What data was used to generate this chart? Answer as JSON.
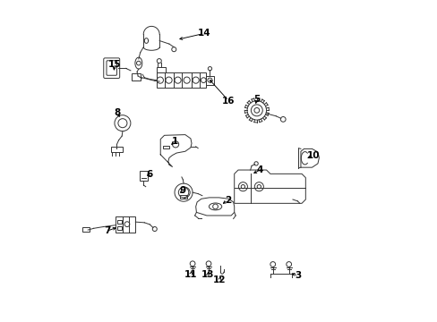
{
  "background_color": "#ffffff",
  "figsize": [
    4.89,
    3.6
  ],
  "dpi": 100,
  "line_color": "#333333",
  "label_positions": {
    "14": [
      0.455,
      0.895,
      0.38,
      0.875
    ],
    "15": [
      0.175,
      0.795,
      0.195,
      0.768
    ],
    "16": [
      0.525,
      0.685,
      0.478,
      0.675
    ],
    "5": [
      0.615,
      0.685,
      0.595,
      0.655
    ],
    "8": [
      0.185,
      0.645,
      0.195,
      0.615
    ],
    "1": [
      0.365,
      0.555,
      0.345,
      0.538
    ],
    "10": [
      0.79,
      0.515,
      0.765,
      0.5
    ],
    "6": [
      0.285,
      0.455,
      0.268,
      0.448
    ],
    "9": [
      0.39,
      0.405,
      0.375,
      0.398
    ],
    "4": [
      0.625,
      0.468,
      0.598,
      0.455
    ],
    "2": [
      0.525,
      0.375,
      0.5,
      0.362
    ],
    "7": [
      0.155,
      0.278,
      0.185,
      0.288
    ],
    "11": [
      0.415,
      0.145,
      0.418,
      0.168
    ],
    "13": [
      0.468,
      0.145,
      0.468,
      0.168
    ],
    "12": [
      0.505,
      0.128,
      0.505,
      0.152
    ],
    "3": [
      0.748,
      0.138,
      0.718,
      0.148
    ]
  }
}
